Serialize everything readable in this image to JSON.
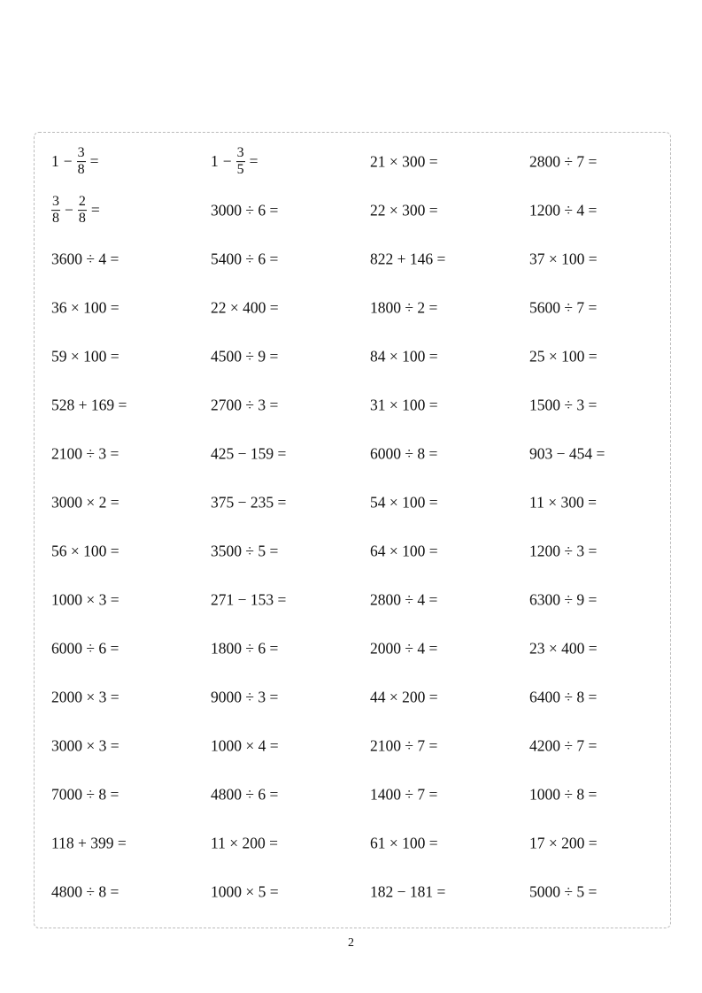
{
  "problems": [
    [
      [
        {
          "t": "1"
        },
        {
          "t": "−"
        },
        {
          "n": "3",
          "d": "8"
        },
        {
          "t": "="
        }
      ],
      [
        {
          "t": "1"
        },
        {
          "t": "−"
        },
        {
          "n": "3",
          "d": "5"
        },
        {
          "t": "="
        }
      ],
      [
        {
          "t": "21 × 300 ="
        }
      ],
      [
        {
          "t": "2800 ÷ 7 ="
        }
      ]
    ],
    [
      [
        {
          "n": "3",
          "d": "8"
        },
        {
          "t": "−"
        },
        {
          "n": "2",
          "d": "8"
        },
        {
          "t": "="
        }
      ],
      [
        {
          "t": "3000 ÷ 6 ="
        }
      ],
      [
        {
          "t": "22 × 300 ="
        }
      ],
      [
        {
          "t": "1200 ÷ 4 ="
        }
      ]
    ],
    [
      [
        {
          "t": "3600 ÷ 4 ="
        }
      ],
      [
        {
          "t": "5400 ÷ 6 ="
        }
      ],
      [
        {
          "t": "822 + 146 ="
        }
      ],
      [
        {
          "t": "37 × 100 ="
        }
      ]
    ],
    [
      [
        {
          "t": "36 × 100 ="
        }
      ],
      [
        {
          "t": "22 × 400 ="
        }
      ],
      [
        {
          "t": "1800 ÷ 2 ="
        }
      ],
      [
        {
          "t": "5600 ÷ 7 ="
        }
      ]
    ],
    [
      [
        {
          "t": "59 × 100 ="
        }
      ],
      [
        {
          "t": "4500 ÷ 9 ="
        }
      ],
      [
        {
          "t": "84 × 100 ="
        }
      ],
      [
        {
          "t": "25 × 100 ="
        }
      ]
    ],
    [
      [
        {
          "t": "528 + 169 ="
        }
      ],
      [
        {
          "t": "2700 ÷ 3 ="
        }
      ],
      [
        {
          "t": "31 × 100 ="
        }
      ],
      [
        {
          "t": "1500 ÷ 3 ="
        }
      ]
    ],
    [
      [
        {
          "t": "2100 ÷ 3 ="
        }
      ],
      [
        {
          "t": "425 − 159 ="
        }
      ],
      [
        {
          "t": "6000 ÷ 8 ="
        }
      ],
      [
        {
          "t": "903 − 454 ="
        }
      ]
    ],
    [
      [
        {
          "t": "3000 × 2 ="
        }
      ],
      [
        {
          "t": "375 − 235 ="
        }
      ],
      [
        {
          "t": "54 × 100 ="
        }
      ],
      [
        {
          "t": "11 × 300 ="
        }
      ]
    ],
    [
      [
        {
          "t": "56 × 100 ="
        }
      ],
      [
        {
          "t": "3500 ÷ 5 ="
        }
      ],
      [
        {
          "t": "64 × 100 ="
        }
      ],
      [
        {
          "t": "1200 ÷ 3 ="
        }
      ]
    ],
    [
      [
        {
          "t": "1000 × 3 ="
        }
      ],
      [
        {
          "t": "271 − 153 ="
        }
      ],
      [
        {
          "t": "2800 ÷ 4 ="
        }
      ],
      [
        {
          "t": "6300 ÷ 9 ="
        }
      ]
    ],
    [
      [
        {
          "t": "6000 ÷ 6 ="
        }
      ],
      [
        {
          "t": "1800 ÷ 6 ="
        }
      ],
      [
        {
          "t": "2000 ÷ 4 ="
        }
      ],
      [
        {
          "t": "23 × 400 ="
        }
      ]
    ],
    [
      [
        {
          "t": "2000 × 3 ="
        }
      ],
      [
        {
          "t": "9000 ÷ 3 ="
        }
      ],
      [
        {
          "t": "44 × 200 ="
        }
      ],
      [
        {
          "t": "6400 ÷ 8 ="
        }
      ]
    ],
    [
      [
        {
          "t": "3000 × 3 ="
        }
      ],
      [
        {
          "t": "1000 × 4 ="
        }
      ],
      [
        {
          "t": "2100 ÷ 7 ="
        }
      ],
      [
        {
          "t": "4200 ÷ 7 ="
        }
      ]
    ],
    [
      [
        {
          "t": "7000 ÷ 8 ="
        }
      ],
      [
        {
          "t": "4800 ÷ 6 ="
        }
      ],
      [
        {
          "t": "1400 ÷ 7 ="
        }
      ],
      [
        {
          "t": "1000 ÷ 8 ="
        }
      ]
    ],
    [
      [
        {
          "t": "118 + 399 ="
        }
      ],
      [
        {
          "t": "11 × 200 ="
        }
      ],
      [
        {
          "t": "61 × 100 ="
        }
      ],
      [
        {
          "t": "17 × 200 ="
        }
      ]
    ],
    [
      [
        {
          "t": "4800 ÷ 8 ="
        }
      ],
      [
        {
          "t": "1000 × 5 ="
        }
      ],
      [
        {
          "t": "182 − 181 ="
        }
      ],
      [
        {
          "t": "5000 ÷ 5 ="
        }
      ]
    ]
  ],
  "page_number": "2"
}
